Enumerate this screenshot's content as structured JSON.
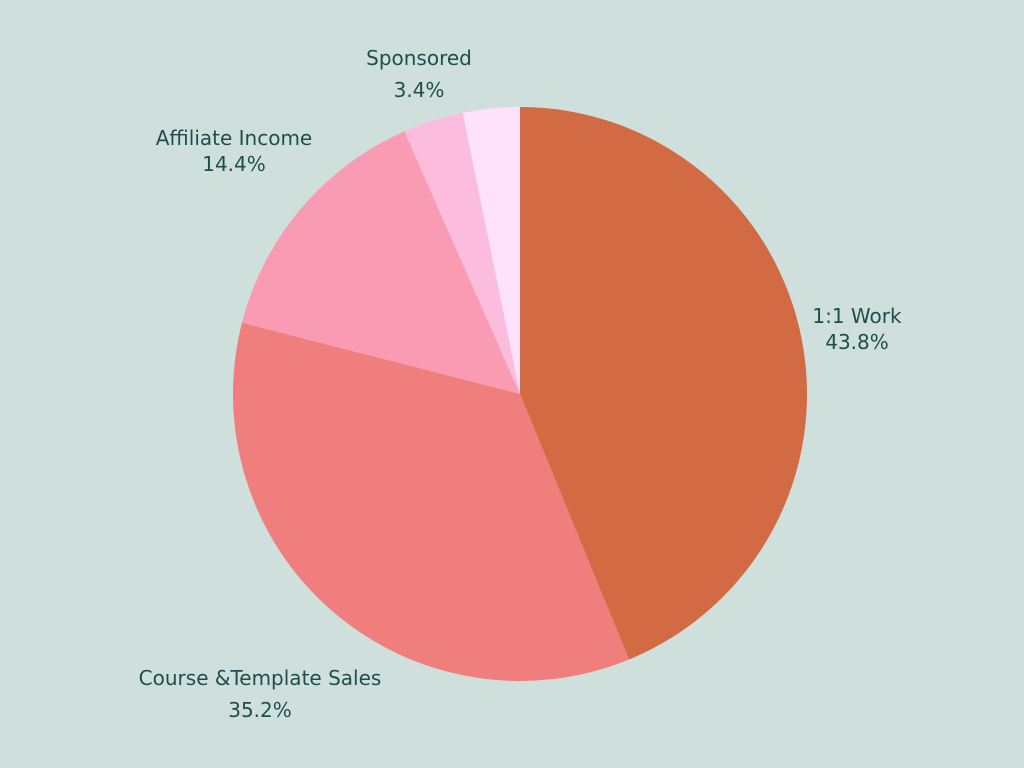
{
  "chart_data": {
    "type": "pie",
    "title": "",
    "text_color": "#1f4f4c",
    "background": "#cfdfdc",
    "start": "12 o'clock",
    "direction": "clockwise",
    "slices": [
      {
        "label": "1:1 Work",
        "value": 43.8,
        "value_label": "43.8%",
        "color": "#d26a43"
      },
      {
        "label": "Course &Template Sales",
        "value": 35.2,
        "value_label": "35.2%",
        "color": "#ef7e7c"
      },
      {
        "label": "Affiliate Income",
        "value": 14.4,
        "value_label": "14.4%",
        "color": "#f99bb2"
      },
      {
        "label": "Sponsored",
        "value": 3.4,
        "value_label": "3.4%",
        "color": "#fcbcdd"
      },
      {
        "label": "",
        "value": 3.2,
        "value_label": "",
        "color": "#fee1fb"
      }
    ]
  }
}
